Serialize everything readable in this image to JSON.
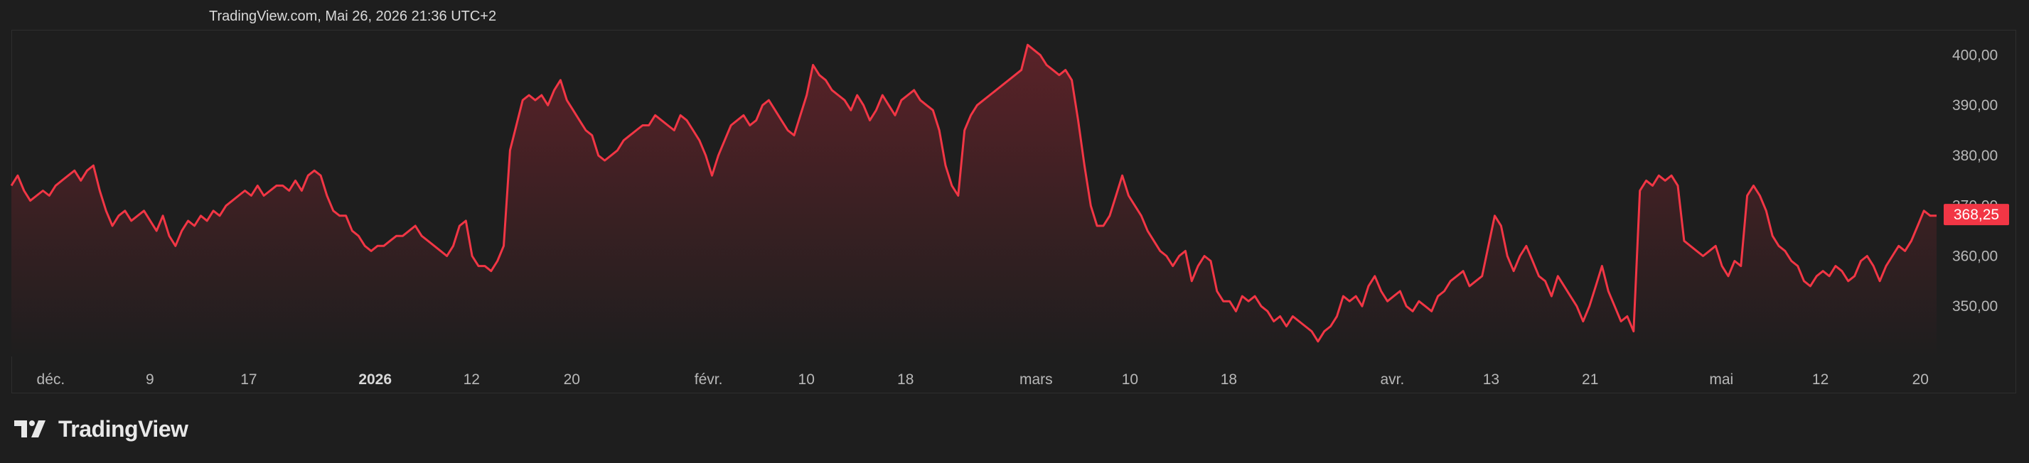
{
  "header": {
    "timestamp": "TradingView.com, Mai 26, 2026 21:36 UTC+2"
  },
  "brand": {
    "name": "TradingView",
    "logo_icon": "tradingview-logo-icon"
  },
  "colors": {
    "background": "#1e1e1e",
    "line": "#f23645",
    "area_top": "#5a2228",
    "area_bottom": "#1e1e1e",
    "price_label_bg": "#f23645"
  },
  "chart_data": {
    "type": "area",
    "title": "",
    "xlabel": "",
    "ylabel": "",
    "grid": false,
    "y_axis_position": "right",
    "ylim": [
      340,
      405
    ],
    "y_ticks": [
      {
        "value": 400,
        "label": "400,00"
      },
      {
        "value": 390,
        "label": "390,00"
      },
      {
        "value": 380,
        "label": "380,00"
      },
      {
        "value": 370,
        "label": "370,00"
      },
      {
        "value": 360,
        "label": "360,00"
      },
      {
        "value": 350,
        "label": "350,00"
      }
    ],
    "last_price": {
      "value": 368.25,
      "label": "368,25"
    },
    "x_ticks": [
      {
        "label": "déc.",
        "pos": 0.025,
        "bold": false
      },
      {
        "label": "9",
        "pos": 0.0739,
        "bold": false
      },
      {
        "label": "17",
        "pos": 0.1226,
        "bold": false
      },
      {
        "label": "2026",
        "pos": 0.1849,
        "bold": true
      },
      {
        "label": "12",
        "pos": 0.2324,
        "bold": false
      },
      {
        "label": "20",
        "pos": 0.2818,
        "bold": false
      },
      {
        "label": "févr.",
        "pos": 0.3492,
        "bold": false
      },
      {
        "label": "10",
        "pos": 0.3974,
        "bold": false
      },
      {
        "label": "18",
        "pos": 0.4463,
        "bold": false
      },
      {
        "label": "mars",
        "pos": 0.5106,
        "bold": false
      },
      {
        "label": "10",
        "pos": 0.5569,
        "bold": false
      },
      {
        "label": "18",
        "pos": 0.6056,
        "bold": false
      },
      {
        "label": "avr.",
        "pos": 0.6862,
        "bold": false
      },
      {
        "label": "13",
        "pos": 0.7349,
        "bold": false
      },
      {
        "label": "21",
        "pos": 0.7837,
        "bold": false
      },
      {
        "label": "mai",
        "pos": 0.8484,
        "bold": false
      },
      {
        "label": "12",
        "pos": 0.8972,
        "bold": false
      },
      {
        "label": "20",
        "pos": 0.9465,
        "bold": false
      }
    ],
    "series": [
      {
        "values": [
          374,
          376,
          373,
          371,
          372,
          373,
          372,
          374,
          375,
          376,
          377,
          375,
          377,
          378,
          373,
          369,
          366,
          368,
          369,
          367,
          368,
          369,
          367,
          365,
          368,
          364,
          362,
          365,
          367,
          366,
          368,
          367,
          369,
          368,
          370,
          371,
          372,
          373,
          372,
          374,
          372,
          373,
          374,
          374,
          373,
          375,
          373,
          376,
          377,
          376,
          372,
          369,
          368,
          368,
          365,
          364,
          362,
          361,
          362,
          362,
          363,
          364,
          364,
          365,
          366,
          364,
          363,
          362,
          361,
          360,
          362,
          366,
          367,
          360,
          358,
          358,
          357,
          359,
          362,
          381,
          386,
          391,
          392,
          391,
          392,
          390,
          393,
          395,
          391,
          389,
          387,
          385,
          384,
          380,
          379,
          380,
          381,
          383,
          384,
          385,
          386,
          386,
          388,
          387,
          386,
          385,
          388,
          387,
          385,
          383,
          380,
          376,
          380,
          383,
          386,
          387,
          388,
          386,
          387,
          390,
          391,
          389,
          387,
          385,
          384,
          388,
          392,
          398,
          396,
          395,
          393,
          392,
          391,
          389,
          392,
          390,
          387,
          389,
          392,
          390,
          388,
          391,
          392,
          393,
          391,
          390,
          389,
          385,
          378,
          374,
          372,
          385,
          388,
          390,
          391,
          392,
          393,
          394,
          395,
          396,
          397,
          402,
          401,
          400,
          398,
          397,
          396,
          397,
          395,
          387,
          378,
          370,
          366,
          366,
          368,
          372,
          376,
          372,
          370,
          368,
          365,
          363,
          361,
          360,
          358,
          360,
          361,
          355,
          358,
          360,
          359,
          353,
          351,
          351,
          349,
          352,
          351,
          352,
          350,
          349,
          347,
          348,
          346,
          348,
          347,
          346,
          345,
          343,
          345,
          346,
          348,
          352,
          351,
          352,
          350,
          354,
          356,
          353,
          351,
          352,
          353,
          350,
          349,
          351,
          350,
          349,
          352,
          353,
          355,
          356,
          357,
          354,
          355,
          356,
          362,
          368,
          366,
          360,
          357,
          360,
          362,
          359,
          356,
          355,
          352,
          356,
          354,
          352,
          350,
          347,
          350,
          354,
          358,
          353,
          350,
          347,
          348,
          345,
          373,
          375,
          374,
          376,
          375,
          376,
          374,
          363,
          362,
          361,
          360,
          361,
          362,
          358,
          356,
          359,
          358,
          372,
          374,
          372,
          369,
          364,
          362,
          361,
          359,
          358,
          355,
          354,
          356,
          357,
          356,
          358,
          357,
          355,
          356,
          359,
          360,
          358,
          355,
          358,
          360,
          362,
          361,
          363,
          366,
          369,
          368,
          368
        ]
      }
    ]
  }
}
